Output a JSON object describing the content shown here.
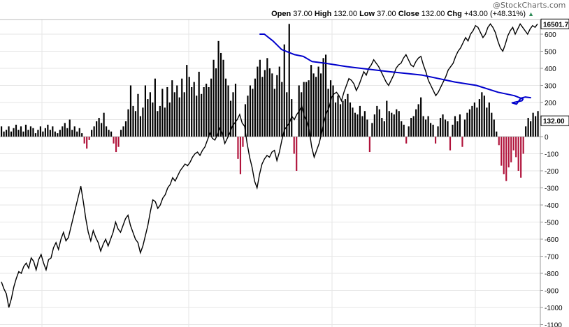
{
  "header": {
    "watermark": "@StockCharts.com",
    "open_label": "Open",
    "open_value": "37.00",
    "high_label": "High",
    "high_value": "132.00",
    "low_label": "Low",
    "low_value": "37.00",
    "close_label": "Close",
    "close_value": "132.00",
    "chg_label": "Chg",
    "chg_value": "+43.00 (+48.31%)",
    "chg_direction_icon": "triangle-up-icon"
  },
  "colors": {
    "positive_bar": "#000000",
    "negative_bar": "#b0123a",
    "line": "#000000",
    "annotation": "#0000cc",
    "grid": "#e6e6e6"
  },
  "chart_data": {
    "type": "bar",
    "ylim": [
      -1100,
      700
    ],
    "yticks": [
      600,
      500,
      400,
      300,
      200,
      100,
      0,
      -100,
      -200,
      -300,
      -400,
      -500,
      -600,
      -700,
      -800,
      -900,
      -1000,
      -1100
    ],
    "last_value_label": "132.00",
    "overlay_last_value_label": "16501.7",
    "bars": [
      60,
      30,
      40,
      60,
      30,
      50,
      70,
      40,
      60,
      30,
      70,
      40,
      60,
      50,
      20,
      40,
      60,
      30,
      50,
      70,
      40,
      60,
      30,
      20,
      40,
      60,
      80,
      50,
      100,
      40,
      60,
      30,
      50,
      20,
      -40,
      -70,
      -20,
      40,
      60,
      90,
      110,
      80,
      140,
      60,
      40,
      30,
      -40,
      -90,
      -60,
      40,
      60,
      90,
      160,
      300,
      180,
      150,
      250,
      120,
      170,
      300,
      220,
      260,
      200,
      340,
      150,
      180,
      280,
      170,
      290,
      200,
      330,
      260,
      300,
      230,
      340,
      260,
      420,
      350,
      290,
      320,
      240,
      380,
      250,
      290,
      310,
      290,
      340,
      450,
      400,
      560,
      490,
      450,
      340,
      300,
      210,
      260,
      310,
      -130,
      -220,
      -60,
      190,
      240,
      300,
      280,
      340,
      410,
      450,
      350,
      390,
      460,
      400,
      370,
      280,
      360,
      410,
      320,
      540,
      260,
      660,
      220,
      -100,
      -200,
      300,
      260,
      320,
      320,
      330,
      420,
      370,
      350,
      410,
      370,
      460,
      480,
      280,
      330,
      300,
      200,
      240,
      190,
      210,
      220,
      250,
      200,
      170,
      140,
      130,
      180,
      120,
      150,
      100,
      -90,
      80,
      130,
      180,
      160,
      110,
      90,
      210,
      150,
      140,
      130,
      160,
      150,
      90,
      70,
      -40,
      60,
      110,
      120,
      160,
      190,
      230,
      120,
      100,
      120,
      80,
      70,
      -40,
      60,
      110,
      130,
      100,
      90,
      -80,
      70,
      120,
      90,
      130,
      -60,
      100,
      140,
      160,
      180,
      200,
      170,
      220,
      260,
      240,
      170,
      200,
      140,
      100,
      30,
      -50,
      -170,
      -220,
      -260,
      -180,
      -150,
      -80,
      -120,
      -200,
      -240,
      -100,
      60,
      110,
      90,
      140,
      120,
      150
    ],
    "overlay_series": [
      -850,
      -890,
      -920,
      -1000,
      -950,
      -880,
      -830,
      -790,
      -800,
      -760,
      -740,
      -770,
      -710,
      -730,
      -780,
      -720,
      -690,
      -740,
      -780,
      -720,
      -710,
      -650,
      -620,
      -660,
      -600,
      -560,
      -610,
      -590,
      -530,
      -470,
      -410,
      -350,
      -290,
      -380,
      -480,
      -560,
      -610,
      -550,
      -590,
      -620,
      -670,
      -630,
      -600,
      -640,
      -600,
      -560,
      -500,
      -540,
      -560,
      -520,
      -480,
      -460,
      -520,
      -560,
      -600,
      -620,
      -680,
      -640,
      -580,
      -520,
      -440,
      -370,
      -380,
      -420,
      -400,
      -360,
      -340,
      -300,
      -280,
      -240,
      -260,
      -230,
      -200,
      -180,
      -160,
      -170,
      -150,
      -120,
      -100,
      -90,
      -110,
      -80,
      -60,
      -20,
      20,
      -10,
      -20,
      10,
      50,
      20,
      -40,
      -10,
      20,
      60,
      80,
      100,
      130,
      80,
      60,
      -40,
      -120,
      -180,
      -260,
      -300,
      -220,
      -160,
      -130,
      -110,
      -120,
      -90,
      -80,
      -140,
      -90,
      -20,
      40,
      60,
      80,
      120,
      100,
      130,
      150,
      180,
      120,
      90,
      40,
      -60,
      -120,
      -80,
      -40,
      20,
      90,
      140,
      170,
      230,
      250,
      260,
      240,
      210,
      260,
      300,
      340,
      330,
      310,
      270,
      300,
      340,
      380,
      360,
      400,
      420,
      450,
      430,
      410,
      380,
      350,
      320,
      300,
      330,
      360,
      400,
      420,
      430,
      460,
      480,
      450,
      420,
      410,
      440,
      460,
      470,
      420,
      380,
      330,
      300,
      270,
      240,
      260,
      290,
      320,
      350,
      390,
      410,
      430,
      470,
      500,
      520,
      550,
      580,
      560,
      600,
      620,
      650,
      640,
      610,
      580,
      600,
      640,
      660,
      640,
      610,
      560,
      520,
      500,
      540,
      590,
      620,
      640,
      600,
      630,
      660,
      640,
      620,
      600,
      630,
      650,
      640,
      660
    ],
    "annotation_path": [
      [
        0,
        600
      ],
      [
        4,
        600
      ],
      [
        12,
        560
      ],
      [
        20,
        510
      ],
      [
        32,
        480
      ],
      [
        40,
        470
      ],
      [
        48,
        440
      ],
      [
        60,
        430
      ],
      [
        80,
        410
      ],
      [
        120,
        380
      ],
      [
        150,
        360
      ],
      [
        180,
        320
      ],
      [
        200,
        300
      ],
      [
        220,
        260
      ],
      [
        235,
        240
      ],
      [
        243,
        220
      ],
      [
        242,
        210
      ],
      [
        238,
        205
      ],
      [
        233,
        198
      ],
      [
        237,
        190
      ],
      [
        241,
        225
      ],
      [
        245,
        232
      ],
      [
        250,
        228
      ]
    ]
  }
}
